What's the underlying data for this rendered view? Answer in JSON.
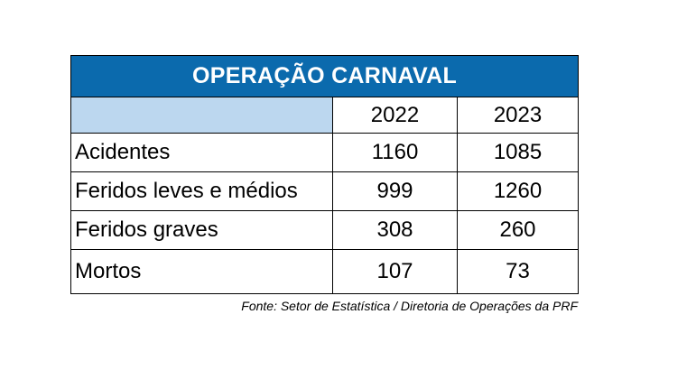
{
  "chart_data": {
    "type": "table",
    "title": "OPERAÇÃO CARNAVAL",
    "columns": [
      "2022",
      "2023"
    ],
    "rows": [
      {
        "label": "Acidentes",
        "values": [
          "1160",
          "1085"
        ]
      },
      {
        "label": "Feridos leves e médios",
        "values": [
          "999",
          "1260"
        ]
      },
      {
        "label": "Feridos graves",
        "values": [
          "308",
          "260"
        ]
      },
      {
        "label": "Mortos",
        "values": [
          "107",
          "73"
        ]
      }
    ],
    "source": "Fonte: Setor de Estatística / Diretoria de Operações da PRF"
  },
  "colors": {
    "title_background": "#0b6aad",
    "header_corner_background": "#bcd7ef",
    "title_text": "#ffffff"
  }
}
